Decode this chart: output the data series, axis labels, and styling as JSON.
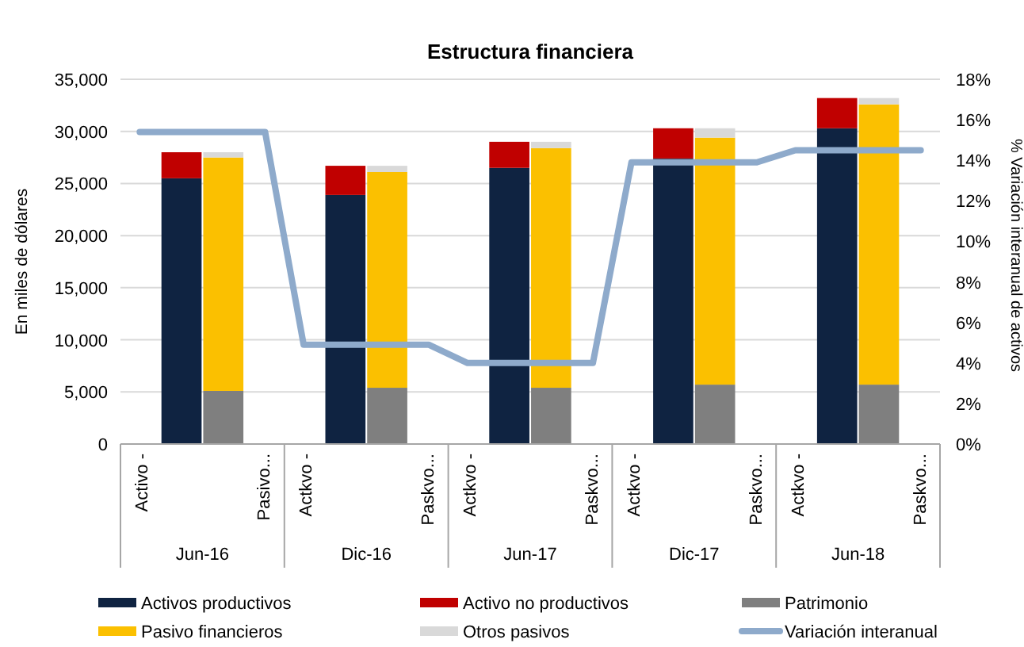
{
  "chart_data": {
    "type": "bar",
    "stacked": true,
    "subtitle": "Estructura financiera",
    "ylabel": "En miles de dólares",
    "y2label": "% Variación interanual de activos",
    "categories": [
      "Activo -",
      "Pasivo...",
      "Actkvo -",
      "Paskvo...",
      "Actkvo -",
      "Paskvo...",
      "Actkvo -",
      "Paskvo...",
      "Actkvo -",
      "Paskvo..."
    ],
    "annotations": [
      "Jun-16",
      "Dic-16",
      "Jun-17",
      "Dic-17",
      "Jun-18"
    ],
    "series": [
      {
        "name": "Activos productivos",
        "color": "#0f2341",
        "values": [
          25500,
          null,
          23900,
          null,
          26500,
          null,
          27400,
          null,
          30300,
          null
        ]
      },
      {
        "name": "Activo no productivos",
        "color": "#c00000",
        "values": [
          2500,
          null,
          2800,
          null,
          2500,
          null,
          2900,
          null,
          2900,
          null
        ]
      },
      {
        "name": "Patrimonio",
        "color": "#7f7f7f",
        "values": [
          null,
          5100,
          null,
          5400,
          null,
          5400,
          null,
          5700,
          null,
          5700
        ]
      },
      {
        "name": "Pasivo financieros",
        "color": "#fbc000",
        "values": [
          null,
          22400,
          null,
          20700,
          null,
          23000,
          null,
          23700,
          null,
          26900
        ]
      },
      {
        "name": "Otros pasivos",
        "color": "#d9d9d9",
        "values": [
          null,
          500,
          null,
          600,
          null,
          600,
          null,
          900,
          null,
          600
        ]
      },
      {
        "name": "Variación interanual",
        "type": "line",
        "axis": "y2",
        "color": "#8eaacb",
        "values": [
          15.4,
          15.4,
          4.9,
          4.9,
          4.0,
          4.0,
          13.9,
          13.9,
          14.5,
          14.5
        ]
      }
    ],
    "ylim": [
      0,
      35000
    ],
    "yticks": [
      {
        "value": 0,
        "label": "0"
      },
      {
        "value": 5000,
        "label": "5,000"
      },
      {
        "value": 10000,
        "label": "10,000"
      },
      {
        "value": 15000,
        "label": "15,000"
      },
      {
        "value": 20000,
        "label": "20,000"
      },
      {
        "value": 25000,
        "label": "25,000"
      },
      {
        "value": 30000,
        "label": "30,000"
      },
      {
        "value": 35000,
        "label": "35,000"
      }
    ],
    "y2lim": [
      0,
      18
    ],
    "y2ticks": [
      {
        "value": 0,
        "label": "0%"
      },
      {
        "value": 2,
        "label": "2%"
      },
      {
        "value": 4,
        "label": "4%"
      },
      {
        "value": 6,
        "label": "6%"
      },
      {
        "value": 8,
        "label": "8%"
      },
      {
        "value": 10,
        "label": "10%"
      },
      {
        "value": 12,
        "label": "12%"
      },
      {
        "value": 14,
        "label": "14%"
      },
      {
        "value": 16,
        "label": "16%"
      },
      {
        "value": 18,
        "label": "18%"
      }
    ],
    "grid": "y",
    "legend": "bottom"
  }
}
